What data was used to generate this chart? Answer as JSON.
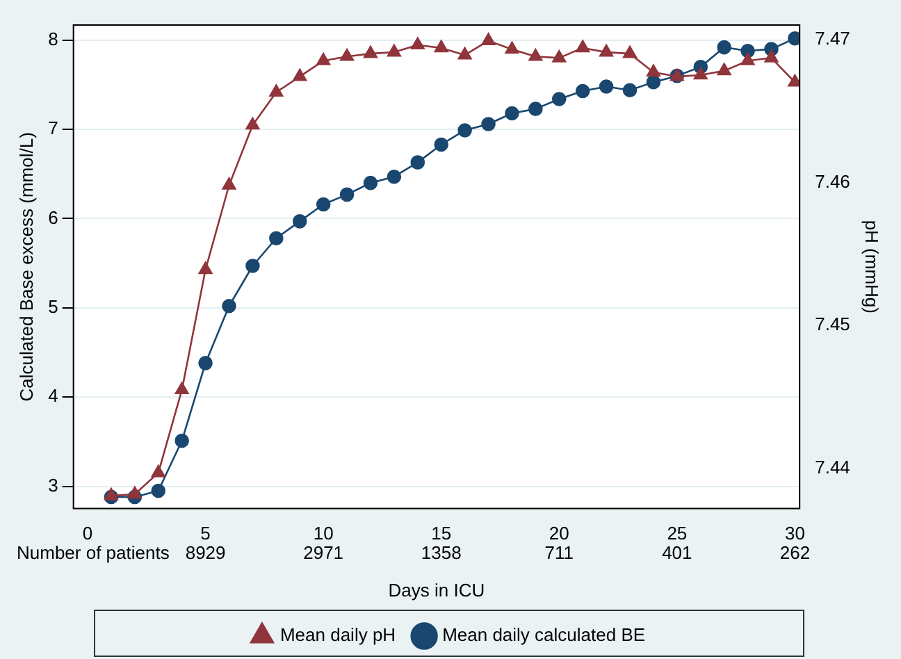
{
  "chart_data": {
    "type": "line",
    "xlabel": "Days in ICU",
    "ylabel": "Calculated Base excess (mmol/L)",
    "y2label": "pH (mmHg)",
    "x": [
      1,
      2,
      3,
      4,
      5,
      6,
      7,
      8,
      9,
      10,
      11,
      12,
      13,
      14,
      15,
      16,
      17,
      18,
      19,
      20,
      21,
      22,
      23,
      24,
      25,
      26,
      27,
      28,
      29,
      30
    ],
    "xlim": [
      -0.6,
      30.2
    ],
    "xticks": [
      0,
      5,
      10,
      15,
      20,
      25,
      30
    ],
    "ylim": [
      2.75,
      8.17
    ],
    "yticks": [
      3,
      4,
      5,
      6,
      7,
      8
    ],
    "y2lim": [
      7.4372,
      7.471
    ],
    "y2ticks": [
      7.44,
      7.45,
      7.46,
      7.47
    ],
    "series": [
      {
        "name": "Mean daily calculated BE",
        "color": "#1a476f",
        "marker": "circle",
        "values": [
          2.88,
          2.88,
          2.95,
          3.51,
          4.38,
          5.02,
          5.47,
          5.78,
          5.97,
          6.16,
          6.27,
          6.4,
          6.47,
          6.63,
          6.83,
          6.99,
          7.06,
          7.18,
          7.23,
          7.34,
          7.43,
          7.48,
          7.44,
          7.53,
          7.6,
          7.7,
          7.92,
          7.88,
          7.9,
          8.02
        ]
      },
      {
        "name": "Mean daily pH",
        "color": "#90353b",
        "marker": "triangle",
        "axis": "y2",
        "values": [
          7.4381,
          7.4382,
          7.4397,
          7.4455,
          7.4539,
          7.4598,
          7.464,
          7.4663,
          7.4674,
          7.4685,
          7.4688,
          7.469,
          7.4691,
          7.4696,
          7.4694,
          7.4689,
          7.4699,
          7.4693,
          7.4688,
          7.4687,
          7.4694,
          7.4691,
          7.469,
          7.4677,
          7.4674,
          7.4675,
          7.4678,
          7.4685,
          7.4687,
          7.467
        ]
      }
    ],
    "annotations": [
      "Number of patients",
      "8929",
      "2971",
      "1358",
      "711",
      "401",
      "262"
    ],
    "grid": "y",
    "legend": "bottom"
  }
}
